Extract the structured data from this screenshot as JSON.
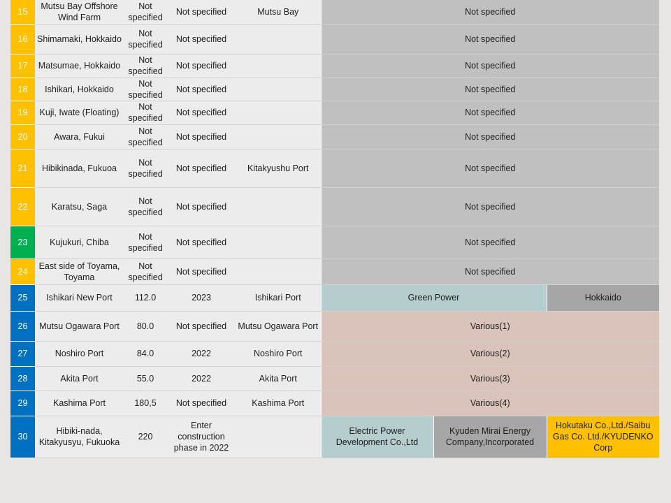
{
  "rows": [
    {
      "num": "15",
      "name": "Mutsu Bay Offshore Wind Farm",
      "capacity": "Not specified",
      "year": "Not specified",
      "port": "Mutsu Bay",
      "operator": "Not specified"
    },
    {
      "num": "16",
      "name": "Shimamaki, Hokkaido",
      "capacity": "Not specified",
      "year": "Not specified",
      "port": "",
      "operator": "Not specified"
    },
    {
      "num": "17",
      "name": "Matsumae, Hokkaido",
      "capacity": "Not specified",
      "year": "Not specified",
      "port": "",
      "operator": "Not specified"
    },
    {
      "num": "18",
      "name": "Ishikari, Hokkaido",
      "capacity": "Not specified",
      "year": "Not specified",
      "port": "",
      "operator": "Not specified"
    },
    {
      "num": "19",
      "name": "Kuji, Iwate (Floating)",
      "capacity": "Not specified",
      "year": "Not specified",
      "port": "",
      "operator": "Not specified"
    },
    {
      "num": "20",
      "name": "Awara, Fukui",
      "capacity": "Not specified",
      "year": "Not specified",
      "port": "",
      "operator": "Not specified"
    },
    {
      "num": "21",
      "name": "Hibikinada, Fukuoa",
      "capacity": "Not specified",
      "year": "Not specified",
      "port": "Kitakyushu Port",
      "operator": "Not specified"
    },
    {
      "num": "22",
      "name": "Karatsu, Saga",
      "capacity": "Not specified",
      "year": "Not specified",
      "port": "",
      "operator": "Not specified"
    },
    {
      "num": "23",
      "name": "Kujukuri, Chiba",
      "capacity": "Not specified",
      "year": "Not specified",
      "port": "",
      "operator": "Not specified"
    },
    {
      "num": "24",
      "name": "East side of Toyama, Toyama",
      "capacity": "Not specified",
      "year": "Not specified",
      "port": "",
      "operator": "Not specified"
    },
    {
      "num": "25",
      "name": "Ishikari New Port",
      "capacity": "112.0",
      "year": "2023",
      "port": "Ishikari Port",
      "operator_a": "Green Power",
      "operator_b": "Hokkaido"
    },
    {
      "num": "26",
      "name": "Mutsu Ogawara Port",
      "capacity": "80.0",
      "year": "Not specified",
      "port": "Mutsu Ogawara Port",
      "operator": "Various(1)"
    },
    {
      "num": "27",
      "name": "Noshiro Port",
      "capacity": "84.0",
      "year": "2022",
      "port": "Noshiro Port",
      "operator": "Various(2)"
    },
    {
      "num": "28",
      "name": "Akita Port",
      "capacity": "55.0",
      "year": "2022",
      "port": "Akita Port",
      "operator": "Various(3)"
    },
    {
      "num": "29",
      "name": "Kashima Port",
      "capacity": "180,5",
      "year": "Not specified",
      "port": "Kashima Port",
      "operator": "Various(4)"
    },
    {
      "num": "30",
      "name": "Hibiki-nada, Kitakyusyu, Fukuoka",
      "capacity": "220",
      "year": "Enter construction phase in 2022",
      "port": "",
      "operator_a": "Electric Power Development Co.,Ltd",
      "operator_b": "Kyuden Mirai Energy Company,Incorporated",
      "operator_c": "Hokutaku Co.,Ltd./Saibu Gas Co. Ltd./KYUDENKO Corp"
    }
  ],
  "colors": {
    "yellow": "#ffc000",
    "green": "#00b050",
    "blue": "#0070c0",
    "operator_gray": "#bfc0bf",
    "operator_green": "#b5cdcd",
    "operator_dark": "#a6a6a6",
    "operator_pink": "#d9c3bb",
    "background": "#e7e6e4"
  }
}
